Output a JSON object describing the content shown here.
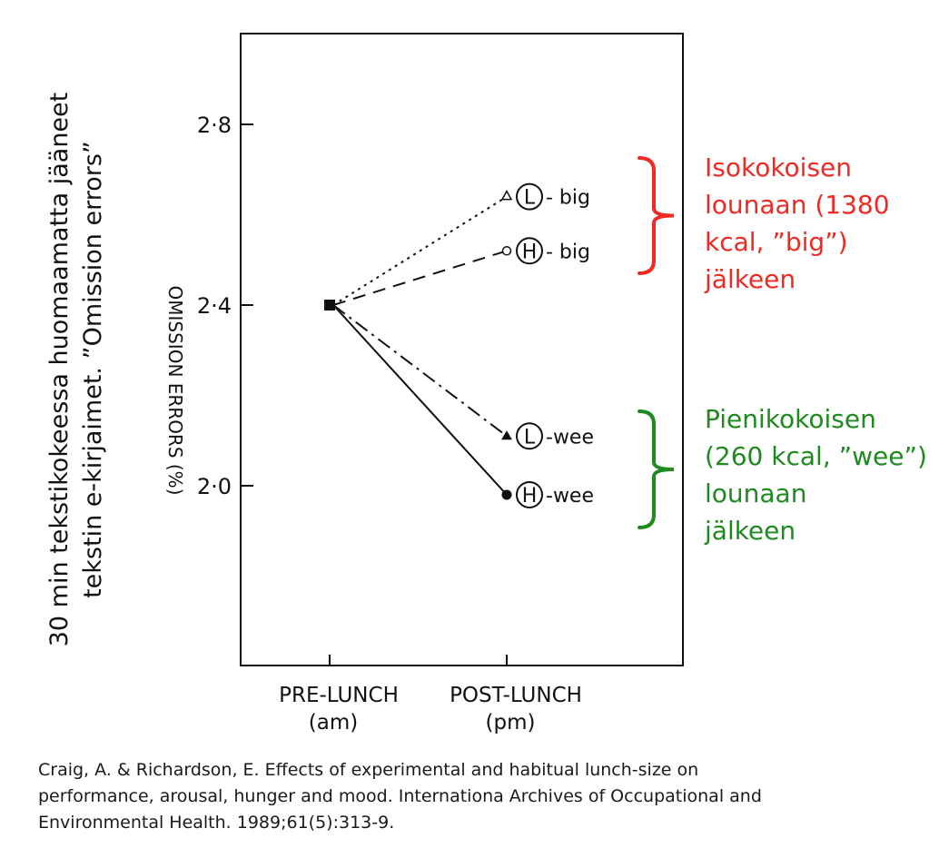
{
  "side_title": {
    "line1": "30 min tekstikokeessa huomaamatta jääneet",
    "line2": "tekstin e-kirjaimet. ”Omission errors”"
  },
  "annotations": {
    "big": {
      "color": "#ee2a24",
      "lines": [
        "Isokokoisen",
        "lounaan (1380",
        "kcal, ”big”)",
        "jälkeen"
      ]
    },
    "wee": {
      "color": "#1f8a1f",
      "lines": [
        "Pienikokoisen",
        "(260 kcal, ”wee”)",
        "lounaan",
        "jälkeen"
      ]
    }
  },
  "caption": {
    "lines": [
      "Craig, A. & Richardson, E. Effects of experimental and habitual lunch-size on",
      "performance, arousal, hunger and mood. Internationa Archives of Occupational and",
      "Environmental Health. 1989;61(5):313-9."
    ]
  },
  "chart_data": {
    "type": "line",
    "ylabel": "OMISSION ERRORS (%)",
    "xlabel": "",
    "categories": [
      {
        "line1": "PRE-LUNCH",
        "line2": "(am)"
      },
      {
        "line1": "POST-LUNCH",
        "line2": "(pm)"
      }
    ],
    "ylim": [
      1.6,
      3.0
    ],
    "yticks": [
      2.0,
      2.4,
      2.8
    ],
    "ytick_labels": [
      "2·0",
      "2·4",
      "2·8"
    ],
    "grid": false,
    "series": [
      {
        "circle": "L",
        "suffix": "- big",
        "values": [
          2.4,
          2.64
        ],
        "line_style": "dotted",
        "marker": "triangle-open"
      },
      {
        "circle": "H",
        "suffix": "- big",
        "values": [
          2.4,
          2.52
        ],
        "line_style": "dashed",
        "marker": "circle-open"
      },
      {
        "circle": "L",
        "suffix": "-wee",
        "values": [
          2.4,
          2.11
        ],
        "line_style": "dash-dot",
        "marker": "triangle-filled"
      },
      {
        "circle": "H",
        "suffix": "-wee",
        "values": [
          2.4,
          1.98
        ],
        "line_style": "solid",
        "marker": "circle-filled"
      }
    ],
    "start_marker": "square-filled"
  }
}
